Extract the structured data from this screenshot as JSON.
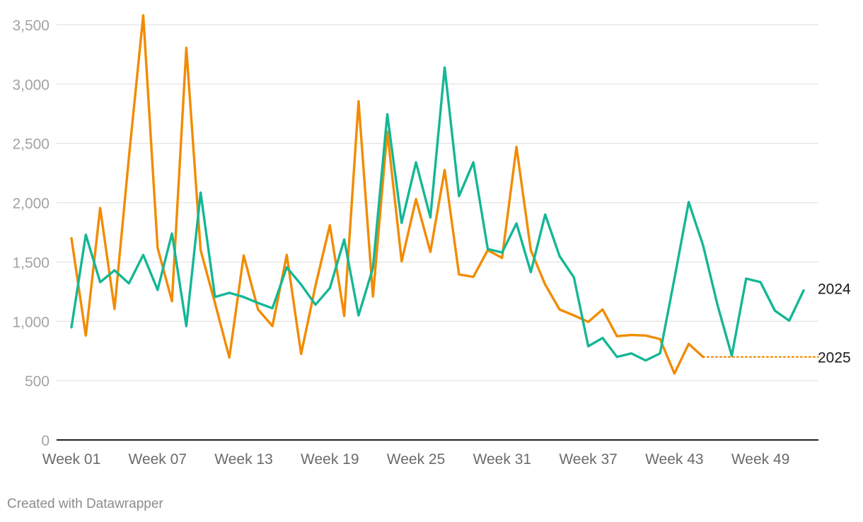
{
  "chart_data": {
    "type": "line",
    "title": "",
    "xlabel": "",
    "ylabel": "",
    "ylim": [
      0,
      3500
    ],
    "yticks": [
      0,
      500,
      1000,
      1500,
      2000,
      2500,
      3000,
      3500
    ],
    "ytick_labels": [
      "0",
      "500",
      "1,000",
      "1,500",
      "2,000",
      "2,500",
      "3,000",
      "3,500"
    ],
    "grid": true,
    "legend": "direct labels at right end of lines",
    "x_count": 52,
    "xticks": [
      1,
      7,
      13,
      19,
      25,
      31,
      37,
      43,
      49
    ],
    "xtick_labels": [
      "Week 01",
      "Week 07",
      "Week 13",
      "Week 19",
      "Week 25",
      "Week 31",
      "Week 37",
      "Week 43",
      "Week 49"
    ],
    "series": [
      {
        "name": "2024",
        "color": "#14b795",
        "style": "solid",
        "values": [
          950,
          1730,
          1330,
          1430,
          1320,
          1560,
          1265,
          1740,
          960,
          2085,
          1205,
          1240,
          1205,
          1155,
          1110,
          1455,
          1310,
          1140,
          1280,
          1690,
          1050,
          1450,
          2745,
          1830,
          2340,
          1875,
          3140,
          2055,
          2340,
          1610,
          1580,
          1825,
          1415,
          1900,
          1550,
          1370,
          790,
          860,
          700,
          730,
          670,
          730,
          1360,
          2005,
          1640,
          1140,
          710,
          1360,
          1330,
          1090,
          1005,
          1260
        ]
      },
      {
        "name": "2025",
        "color": "#f28b00",
        "style": "solid",
        "values": [
          1700,
          880,
          1955,
          1105,
          2380,
          3580,
          1620,
          1170,
          3305,
          1600,
          1155,
          695,
          1555,
          1100,
          960,
          1560,
          725,
          1300,
          1810,
          1045,
          2855,
          1210,
          2600,
          1505,
          2030,
          1585,
          2275,
          1395,
          1375,
          1600,
          1535,
          2470,
          1600,
          1310,
          1100,
          1050,
          995,
          1100,
          875,
          885,
          880,
          850,
          560,
          810,
          700
        ]
      },
      {
        "name": "2025 projection",
        "color": "#f28b00",
        "style": "dotted",
        "values_from_week": 45,
        "values": [
          700,
          700,
          700,
          700,
          700,
          700,
          700,
          700
        ]
      }
    ]
  },
  "labels": {
    "series_2024": "2024",
    "series_2025": "2025"
  },
  "footer": {
    "credit": "Created with Datawrapper"
  }
}
